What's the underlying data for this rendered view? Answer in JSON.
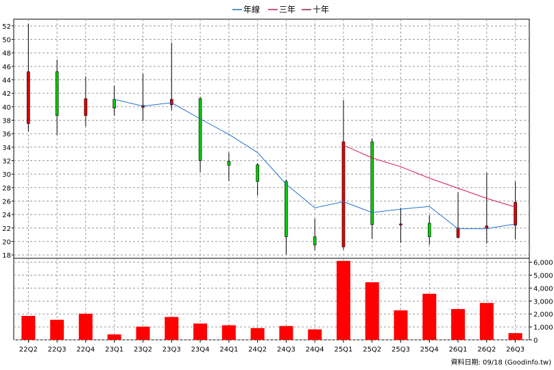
{
  "legend": {
    "items": [
      {
        "label": "年線",
        "color": "#1f6fd0"
      },
      {
        "label": "三年",
        "color": "#d4145a"
      },
      {
        "label": "十年",
        "color": "#8b1a4a"
      }
    ]
  },
  "source_text": "資料日期: 09/18  (Goodinfo.tw)",
  "chart_data": [
    {
      "type": "candlestick",
      "categories": [
        "22Q2",
        "22Q3",
        "22Q4",
        "23Q1",
        "23Q2",
        "23Q3",
        "23Q4",
        "24Q1",
        "24Q2",
        "24Q3",
        "24Q4",
        "25Q1",
        "25Q2",
        "25Q3",
        "25Q4",
        "26Q1",
        "26Q2",
        "26Q3"
      ],
      "ylim": [
        17.5,
        53
      ],
      "y_ticks": [
        18,
        20,
        22,
        24,
        26,
        28,
        30,
        32,
        34,
        36,
        38,
        40,
        42,
        44,
        46,
        48,
        50,
        52
      ],
      "y_axis_side": "left",
      "grid": true,
      "up_color": "#00cc00",
      "down_color": "#dd0000",
      "candles": [
        {
          "open": 45.2,
          "close": 37.5,
          "high": 52.3,
          "low": 36.3
        },
        {
          "open": 38.7,
          "close": 45.2,
          "high": 47.0,
          "low": 35.8
        },
        {
          "open": 41.2,
          "close": 38.7,
          "high": 44.5,
          "low": 37.1
        },
        {
          "open": 39.8,
          "close": 41.1,
          "high": 43.1,
          "low": 38.7
        },
        {
          "open": 40.2,
          "close": 39.9,
          "high": 44.9,
          "low": 37.9
        },
        {
          "open": 41.1,
          "close": 40.3,
          "high": 49.5,
          "low": 39.5
        },
        {
          "open": 32.0,
          "close": 41.2,
          "high": 41.5,
          "low": 30.3
        },
        {
          "open": 31.3,
          "close": 31.9,
          "high": 33.2,
          "low": 29.0
        },
        {
          "open": 28.9,
          "close": 31.4,
          "high": 31.6,
          "low": 26.8
        },
        {
          "open": 20.7,
          "close": 28.9,
          "high": 29.2,
          "low": 18.1
        },
        {
          "open": 19.5,
          "close": 20.7,
          "high": 23.4,
          "low": 18.7
        },
        {
          "open": 34.8,
          "close": 19.2,
          "high": 41.0,
          "low": 18.8
        },
        {
          "open": 22.5,
          "close": 34.8,
          "high": 35.3,
          "low": 20.4
        },
        {
          "open": 22.6,
          "close": 22.5,
          "high": 25.0,
          "low": 19.8
        },
        {
          "open": 20.7,
          "close": 22.7,
          "high": 23.9,
          "low": 19.5
        },
        {
          "open": 22.0,
          "close": 20.6,
          "high": 27.3,
          "low": 20.5
        },
        {
          "open": 22.3,
          "close": 21.9,
          "high": 30.2,
          "low": 19.7
        },
        {
          "open": 25.8,
          "close": 22.4,
          "high": 28.9,
          "low": 20.3
        }
      ],
      "series": [
        {
          "name": "年線",
          "color": "#1f6fd0",
          "values": [
            null,
            null,
            null,
            41.1,
            40.1,
            40.6,
            38.2,
            35.9,
            33.2,
            28.5,
            25.0,
            25.9,
            24.3,
            24.8,
            25.2,
            21.9,
            21.9,
            22.6
          ]
        },
        {
          "name": "三年",
          "color": "#d4145a",
          "values": [
            null,
            null,
            null,
            null,
            null,
            null,
            null,
            null,
            null,
            null,
            null,
            34.3,
            32.4,
            31.1,
            29.4,
            27.9,
            26.4,
            25.1
          ]
        }
      ]
    },
    {
      "type": "bar",
      "categories": [
        "22Q2",
        "22Q3",
        "22Q4",
        "23Q1",
        "23Q2",
        "23Q3",
        "23Q4",
        "24Q1",
        "24Q2",
        "24Q3",
        "24Q4",
        "25Q1",
        "25Q2",
        "25Q3",
        "25Q4",
        "26Q1",
        "26Q2",
        "26Q3"
      ],
      "values": [
        1850,
        1550,
        2020,
        420,
        1020,
        1770,
        1260,
        1130,
        910,
        1070,
        810,
        6100,
        4450,
        2280,
        3560,
        2380,
        2850,
        520
      ],
      "ylim": [
        0,
        6300
      ],
      "y_ticks": [
        0,
        1000,
        2000,
        3000,
        4000,
        5000,
        6000
      ],
      "y_tick_labels": [
        "0",
        "1,000",
        "2,000",
        "3,000",
        "4,000",
        "5,000",
        "6,000"
      ],
      "y_axis_side": "right",
      "color": "#ff0000",
      "grid": true
    }
  ]
}
